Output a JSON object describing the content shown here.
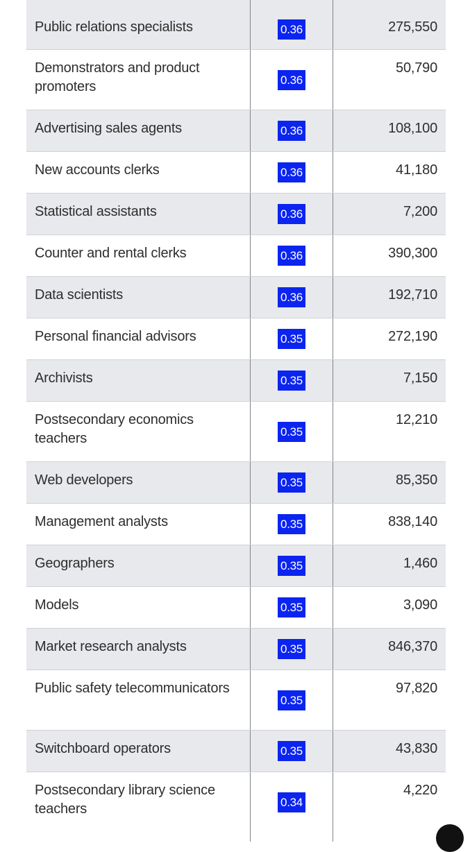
{
  "table": {
    "rows": [
      {
        "occupation": "Public relations specialists",
        "score": "0.36",
        "employment": "275,550"
      },
      {
        "occupation": "Demonstrators and product promoters",
        "score": "0.36",
        "employment": "50,790"
      },
      {
        "occupation": "Advertising sales agents",
        "score": "0.36",
        "employment": "108,100"
      },
      {
        "occupation": "New accounts clerks",
        "score": "0.36",
        "employment": "41,180"
      },
      {
        "occupation": "Statistical assistants",
        "score": "0.36",
        "employment": "7,200"
      },
      {
        "occupation": "Counter and rental clerks",
        "score": "0.36",
        "employment": "390,300"
      },
      {
        "occupation": "Data scientists",
        "score": "0.36",
        "employment": "192,710"
      },
      {
        "occupation": "Personal financial advisors",
        "score": "0.35",
        "employment": "272,190"
      },
      {
        "occupation": "Archivists",
        "score": "0.35",
        "employment": "7,150"
      },
      {
        "occupation": "Postsecondary economics teachers",
        "score": "0.35",
        "employment": "12,210"
      },
      {
        "occupation": "Web developers",
        "score": "0.35",
        "employment": "85,350"
      },
      {
        "occupation": "Management analysts",
        "score": "0.35",
        "employment": "838,140"
      },
      {
        "occupation": "Geographers",
        "score": "0.35",
        "employment": "1,460"
      },
      {
        "occupation": "Models",
        "score": "0.35",
        "employment": "3,090"
      },
      {
        "occupation": "Market research analysts",
        "score": "0.35",
        "employment": "846,370"
      },
      {
        "occupation": "Public safety telecommunicators",
        "score": "0.35",
        "employment": "97,820"
      },
      {
        "occupation": "Switchboard operators",
        "score": "0.35",
        "employment": "43,830"
      },
      {
        "occupation": "Postsecondary library science teachers",
        "score": "0.34",
        "employment": "4,220"
      }
    ]
  },
  "colors": {
    "badge_background": "#0b24f0",
    "row_shaded": "#e8e9ec",
    "row_white": "#ffffff"
  }
}
